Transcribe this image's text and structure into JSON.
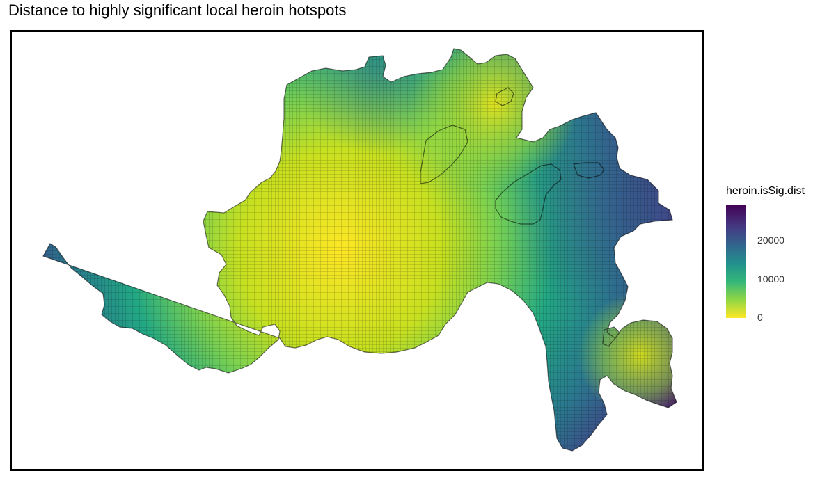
{
  "title": "Distance to highly significant local heroin hotspots",
  "legend": {
    "title": "heroin.isSig.dist",
    "ticks": [
      {
        "value": 0,
        "label": "0"
      },
      {
        "value": 10000,
        "label": "10000"
      },
      {
        "value": 20000,
        "label": "20000"
      }
    ],
    "min": 0,
    "max": 29500,
    "colors": [
      "#fde725",
      "#8fd744",
      "#35b779",
      "#21908d",
      "#31688e",
      "#443a83",
      "#440154"
    ]
  },
  "map": {
    "variable": "heroin.isSig.dist",
    "type": "fishnet-grid",
    "grid_lines": true
  }
}
